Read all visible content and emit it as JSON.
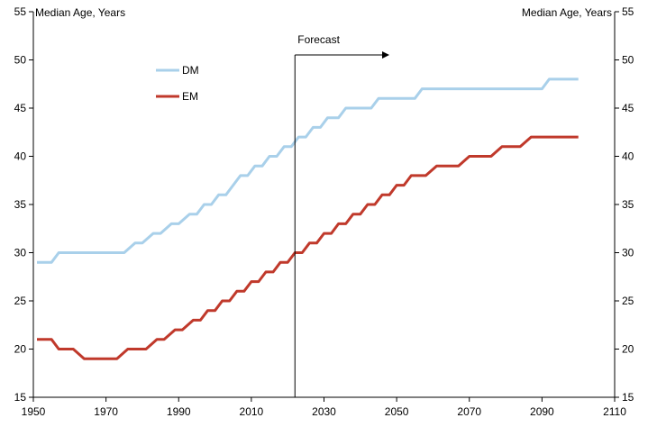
{
  "chart_data": {
    "type": "line",
    "left_axis_title": "Median Age, Years",
    "right_axis_title": "Median Age, Years",
    "xlim": [
      1950,
      2110
    ],
    "ylim": [
      15,
      55
    ],
    "x_ticks": [
      1950,
      1970,
      1990,
      2010,
      2030,
      2050,
      2070,
      2090,
      2110
    ],
    "y_ticks": [
      15,
      20,
      25,
      30,
      35,
      40,
      45,
      50,
      55
    ],
    "annotation": {
      "label": "Forecast",
      "x": 2022
    },
    "series": [
      {
        "name": "DM",
        "color": "#a9d0ea",
        "points": [
          [
            1951,
            29
          ],
          [
            1955,
            29
          ],
          [
            1957,
            30
          ],
          [
            1975,
            30
          ],
          [
            1978,
            31
          ],
          [
            1980,
            31
          ],
          [
            1983,
            32
          ],
          [
            1985,
            32
          ],
          [
            1988,
            33
          ],
          [
            1990,
            33
          ],
          [
            1993,
            34
          ],
          [
            1995,
            34
          ],
          [
            1997,
            35
          ],
          [
            1999,
            35
          ],
          [
            2001,
            36
          ],
          [
            2003,
            36
          ],
          [
            2005,
            37
          ],
          [
            2007,
            38
          ],
          [
            2009,
            38
          ],
          [
            2011,
            39
          ],
          [
            2013,
            39
          ],
          [
            2015,
            40
          ],
          [
            2017,
            40
          ],
          [
            2019,
            41
          ],
          [
            2021,
            41
          ],
          [
            2023,
            42
          ],
          [
            2025,
            42
          ],
          [
            2027,
            43
          ],
          [
            2029,
            43
          ],
          [
            2031,
            44
          ],
          [
            2034,
            44
          ],
          [
            2036,
            45
          ],
          [
            2043,
            45
          ],
          [
            2045,
            46
          ],
          [
            2055,
            46
          ],
          [
            2057,
            47
          ],
          [
            2090,
            47
          ],
          [
            2092,
            48
          ],
          [
            2100,
            48
          ]
        ]
      },
      {
        "name": "EM",
        "color": "#c0392b",
        "points": [
          [
            1951,
            21
          ],
          [
            1955,
            21
          ],
          [
            1957,
            20
          ],
          [
            1961,
            20
          ],
          [
            1964,
            19
          ],
          [
            1973,
            19
          ],
          [
            1976,
            20
          ],
          [
            1981,
            20
          ],
          [
            1984,
            21
          ],
          [
            1986,
            21
          ],
          [
            1989,
            22
          ],
          [
            1991,
            22
          ],
          [
            1994,
            23
          ],
          [
            1996,
            23
          ],
          [
            1998,
            24
          ],
          [
            2000,
            24
          ],
          [
            2002,
            25
          ],
          [
            2004,
            25
          ],
          [
            2006,
            26
          ],
          [
            2008,
            26
          ],
          [
            2010,
            27
          ],
          [
            2012,
            27
          ],
          [
            2014,
            28
          ],
          [
            2016,
            28
          ],
          [
            2018,
            29
          ],
          [
            2020,
            29
          ],
          [
            2022,
            30
          ],
          [
            2024,
            30
          ],
          [
            2026,
            31
          ],
          [
            2028,
            31
          ],
          [
            2030,
            32
          ],
          [
            2032,
            32
          ],
          [
            2034,
            33
          ],
          [
            2036,
            33
          ],
          [
            2038,
            34
          ],
          [
            2040,
            34
          ],
          [
            2042,
            35
          ],
          [
            2044,
            35
          ],
          [
            2046,
            36
          ],
          [
            2048,
            36
          ],
          [
            2050,
            37
          ],
          [
            2052,
            37
          ],
          [
            2054,
            38
          ],
          [
            2058,
            38
          ],
          [
            2061,
            39
          ],
          [
            2067,
            39
          ],
          [
            2070,
            40
          ],
          [
            2076,
            40
          ],
          [
            2079,
            41
          ],
          [
            2084,
            41
          ],
          [
            2087,
            42
          ],
          [
            2100,
            42
          ]
        ]
      }
    ]
  }
}
